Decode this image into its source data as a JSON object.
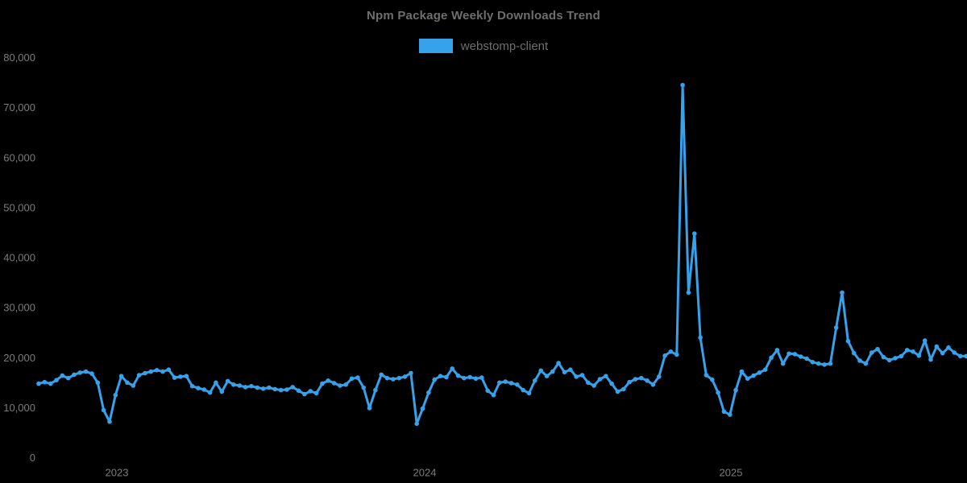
{
  "page": {
    "background": "#000000"
  },
  "chart_data": {
    "type": "line",
    "title": "Npm Package Weekly Downloads Trend",
    "legend_position": "top",
    "grid": false,
    "xlabel": "",
    "ylabel": "",
    "ylim": [
      0,
      80000
    ],
    "y_ticks": [
      0,
      10000,
      20000,
      30000,
      40000,
      50000,
      60000,
      70000,
      80000
    ],
    "y_tick_labels": [
      "0",
      "10,000",
      "20,000",
      "30,000",
      "40,000",
      "50,000",
      "60,000",
      "70,000",
      "80,000"
    ],
    "x_ticks": [
      {
        "label": "2023",
        "index": 13.23
      },
      {
        "label": "2024",
        "index": 65.34
      },
      {
        "label": "2025",
        "index": 117.17
      }
    ],
    "x_unit": "week",
    "legend": [
      {
        "label": "webstomp-client",
        "color": "#36A2EB"
      }
    ],
    "series": [
      {
        "name": "webstomp-client",
        "color": "#36A2EB",
        "values": [
          14800,
          15100,
          14800,
          15500,
          16400,
          15900,
          16600,
          17000,
          17200,
          16800,
          15000,
          9500,
          7200,
          12500,
          16300,
          15000,
          14400,
          16500,
          16900,
          17200,
          17500,
          17200,
          17600,
          16000,
          16200,
          16300,
          14300,
          13900,
          13600,
          13000,
          15000,
          13200,
          15300,
          14600,
          14400,
          14100,
          14300,
          14000,
          13800,
          14000,
          13700,
          13500,
          13600,
          14100,
          13400,
          12700,
          13300,
          12900,
          14800,
          15400,
          14900,
          14400,
          14600,
          15800,
          16000,
          14000,
          9900,
          13500,
          16600,
          15900,
          15700,
          15900,
          16200,
          16900,
          6800,
          9800,
          13000,
          15600,
          16300,
          16100,
          17800,
          16400,
          15900,
          16100,
          15800,
          16000,
          13400,
          12500,
          15000,
          15200,
          14900,
          14600,
          13500,
          12900,
          15400,
          17400,
          16300,
          17200,
          18900,
          17100,
          17600,
          16200,
          16500,
          15000,
          14400,
          15700,
          16300,
          14800,
          13200,
          13700,
          15100,
          15700,
          15900,
          15400,
          14600,
          16200,
          20400,
          21200,
          20600,
          74500,
          33000,
          44800,
          24000,
          16500,
          15600,
          13000,
          9200,
          8600,
          13500,
          17200,
          15800,
          16400,
          17000,
          17600,
          20000,
          21500,
          18800,
          20800,
          20700,
          20200,
          19800,
          19100,
          18800,
          18600,
          18800,
          26000,
          33000,
          23300,
          20900,
          19400,
          18800,
          21000,
          21700,
          20100,
          19500,
          19900,
          20300,
          21500,
          21200,
          20400,
          23400,
          19600,
          22200,
          20900,
          22000,
          21000,
          20300,
          20300
        ]
      }
    ]
  }
}
